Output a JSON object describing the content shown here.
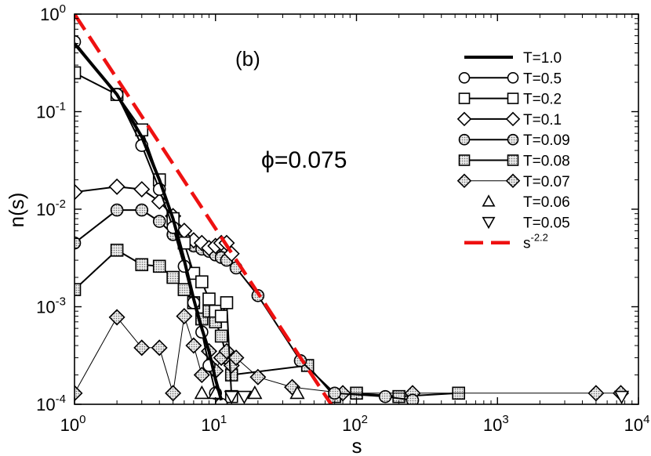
{
  "chart_data": {
    "type": "line",
    "panel_label": "(b)",
    "annotation": {
      "symbol": "ϕ",
      "text": "=0.075"
    },
    "xlabel": "s",
    "ylabel": "n(s)",
    "xscale": "log",
    "yscale": "log",
    "xlim": [
      1,
      10000
    ],
    "ylim": [
      0.0001,
      1
    ],
    "x_ticks": [
      {
        "base": "10",
        "exp": "0",
        "value": 1
      },
      {
        "base": "10",
        "exp": "1",
        "value": 10
      },
      {
        "base": "10",
        "exp": "2",
        "value": 100
      },
      {
        "base": "10",
        "exp": "3",
        "value": 1000
      },
      {
        "base": "10",
        "exp": "4",
        "value": 10000
      }
    ],
    "y_ticks": [
      {
        "base": "10",
        "exp": "-4",
        "value": 0.0001
      },
      {
        "base": "10",
        "exp": "-3",
        "value": 0.001
      },
      {
        "base": "10",
        "exp": "-2",
        "value": 0.01
      },
      {
        "base": "10",
        "exp": "-1",
        "value": 0.1
      },
      {
        "base": "10",
        "exp": "0",
        "value": 1
      }
    ],
    "legend_position": "top-right",
    "series": [
      {
        "name": "T=1.0",
        "marker": "none",
        "fill": "none",
        "line_width": "thick",
        "x": [
          1,
          2,
          3,
          4,
          5,
          6,
          7,
          8,
          9,
          10,
          11
        ],
        "y": [
          0.5,
          0.15,
          0.055,
          0.02,
          0.008,
          0.003,
          0.0012,
          0.0006,
          0.00035,
          0.00018,
          0.00011
        ]
      },
      {
        "name": "T=0.5",
        "marker": "circle",
        "fill": "none",
        "line_width": "normal",
        "x": [
          1,
          2,
          3,
          4,
          5,
          6,
          7,
          8,
          9,
          10,
          11
        ],
        "y": [
          0.52,
          0.15,
          0.045,
          0.016,
          0.0065,
          0.0026,
          0.0011,
          0.00055,
          0.00025,
          0.00013,
          0.0001
        ]
      },
      {
        "name": "T=0.2",
        "marker": "square",
        "fill": "none",
        "line_width": "normal",
        "x": [
          1,
          2,
          3,
          4,
          5,
          6,
          7,
          8,
          9,
          10,
          11,
          12,
          13
        ],
        "y": [
          0.25,
          0.15,
          0.065,
          0.02,
          0.008,
          0.0045,
          0.0022,
          0.0018,
          0.0012,
          0.0009,
          0.0008,
          0.0011,
          0.00012
        ]
      },
      {
        "name": "T=0.1",
        "marker": "diamond",
        "fill": "none",
        "line_width": "normal",
        "x": [
          1,
          2,
          3,
          4,
          5,
          6,
          7,
          8,
          9,
          10,
          11,
          12,
          13
        ],
        "y": [
          0.015,
          0.017,
          0.016,
          0.012,
          0.0085,
          0.006,
          0.0048,
          0.0045,
          0.004,
          0.0042,
          0.0045,
          0.0045,
          0.0035
        ]
      },
      {
        "name": "T=0.09",
        "marker": "circle",
        "fill": "dotted",
        "line_width": "normal",
        "x": [
          1,
          2,
          3,
          4,
          5,
          6,
          7,
          8,
          9,
          10,
          11,
          12,
          14,
          20,
          40,
          70,
          160,
          250
        ],
        "y": [
          0.0045,
          0.0098,
          0.0098,
          0.0075,
          0.0055,
          0.0046,
          0.0042,
          0.0039,
          0.0037,
          0.0034,
          0.0032,
          0.003,
          0.0025,
          0.0013,
          0.00028,
          0.00013,
          0.00012,
          0.00011
        ]
      },
      {
        "name": "T=0.08",
        "marker": "square",
        "fill": "dotted",
        "line_width": "normal",
        "x": [
          1,
          2,
          3,
          4,
          5,
          6,
          7,
          8,
          9,
          10,
          11,
          12,
          13,
          45,
          70,
          100,
          200,
          530
        ],
        "y": [
          0.0015,
          0.0038,
          0.0027,
          0.0026,
          0.002,
          0.0015,
          0.0011,
          0.00075,
          0.0009,
          0.0007,
          0.0005,
          0.0003,
          0.0002,
          0.00025,
          0.00012,
          0.00013,
          0.00012,
          0.00013
        ]
      },
      {
        "name": "T=0.07",
        "marker": "diamond",
        "fill": "dotted",
        "line_width": "thin",
        "x": [
          1,
          2,
          3,
          4,
          5,
          6,
          7,
          8,
          9,
          10,
          11,
          12,
          13,
          14,
          20,
          35,
          80,
          250,
          5000,
          7500
        ],
        "y": [
          0.00013,
          0.00078,
          0.00038,
          0.00038,
          0.00013,
          0.0008,
          0.0004,
          0.0002,
          0.00035,
          0.00022,
          0.0003,
          0.00035,
          0.00025,
          0.0003,
          0.00019,
          0.00015,
          0.00013,
          0.00013,
          0.00013,
          0.00013
        ]
      },
      {
        "name": "T=0.06",
        "marker": "triangle-up",
        "fill": "none",
        "line_width": "none",
        "x": [
          8,
          10,
          19,
          38
        ],
        "y": [
          0.00013,
          0.00013,
          0.00013,
          0.00013
        ]
      },
      {
        "name": "T=0.05",
        "marker": "triangle-down",
        "fill": "none",
        "line_width": "none",
        "x": [
          13,
          16,
          7600
        ],
        "y": [
          0.00012,
          0.00012,
          0.00012
        ]
      },
      {
        "name": "s",
        "legend_exp": "-2.2",
        "marker": "none",
        "fill": "none",
        "line_width": "dashed-red",
        "x": [
          1,
          70
        ],
        "y": [
          1,
          8.8e-05
        ]
      }
    ]
  }
}
